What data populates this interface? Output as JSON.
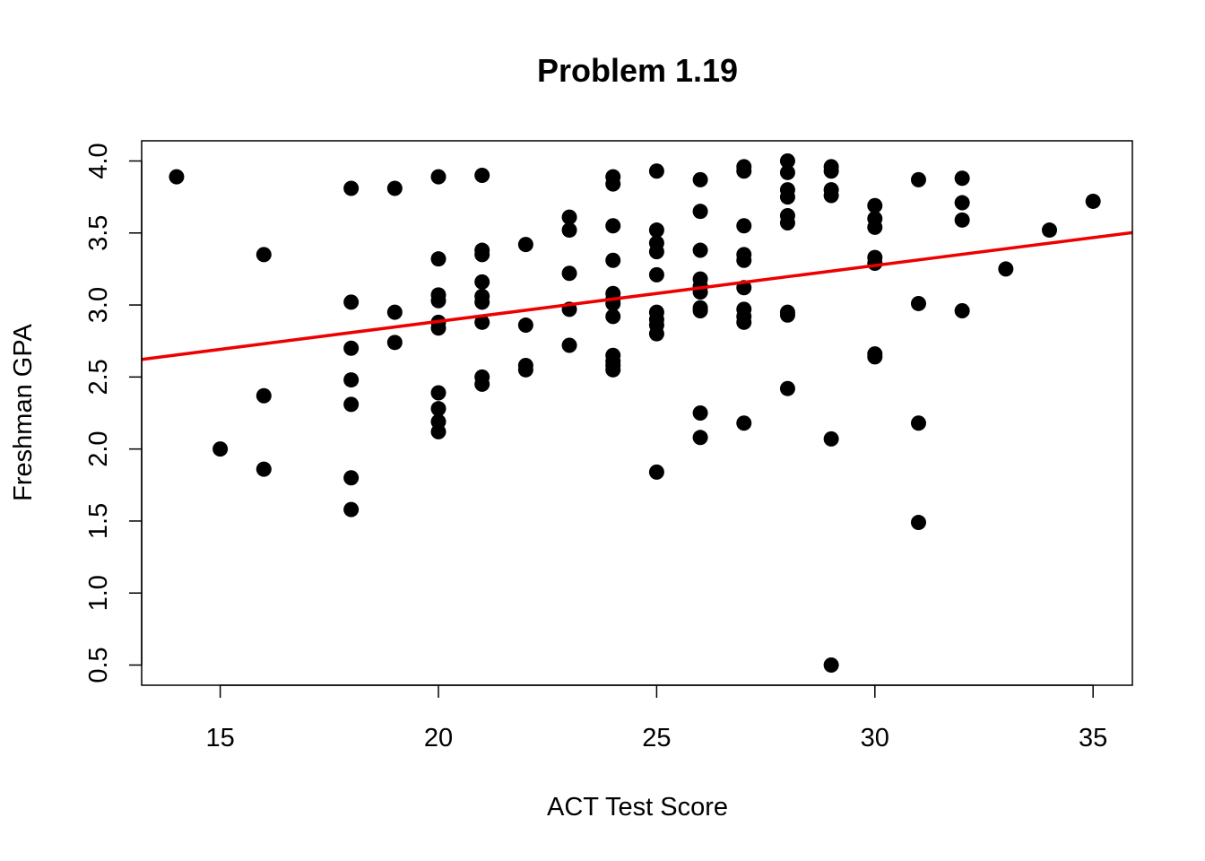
{
  "chart_data": {
    "type": "scatter",
    "title": "Problem 1.19",
    "xlabel": "ACT Test Score",
    "ylabel": "Freshman GPA",
    "xlim": [
      13.2,
      35.9
    ],
    "ylim": [
      0.36,
      4.14
    ],
    "xticks": [
      "15",
      "20",
      "25",
      "30",
      "35"
    ],
    "yticks": [
      "0.5",
      "1.0",
      "1.5",
      "2.0",
      "2.5",
      "3.0",
      "3.5",
      "4.0"
    ],
    "grid": false,
    "legend": "none",
    "point_color": "#000000",
    "line_color": "#ee0000",
    "fit_line": {
      "intercept": 2.11,
      "slope": 0.0388
    },
    "points": [
      {
        "x": 14,
        "y": 3.89
      },
      {
        "x": 15,
        "y": 2.0
      },
      {
        "x": 16,
        "y": 3.35
      },
      {
        "x": 16,
        "y": 2.37
      },
      {
        "x": 16,
        "y": 1.86
      },
      {
        "x": 18,
        "y": 3.81
      },
      {
        "x": 18,
        "y": 3.02
      },
      {
        "x": 18,
        "y": 2.7
      },
      {
        "x": 18,
        "y": 2.48
      },
      {
        "x": 18,
        "y": 2.31
      },
      {
        "x": 18,
        "y": 1.8
      },
      {
        "x": 18,
        "y": 1.58
      },
      {
        "x": 19,
        "y": 3.81
      },
      {
        "x": 19,
        "y": 2.95
      },
      {
        "x": 19,
        "y": 2.74
      },
      {
        "x": 20,
        "y": 3.89
      },
      {
        "x": 20,
        "y": 3.32
      },
      {
        "x": 20,
        "y": 3.07
      },
      {
        "x": 20,
        "y": 3.03
      },
      {
        "x": 20,
        "y": 2.88
      },
      {
        "x": 20,
        "y": 2.84
      },
      {
        "x": 20,
        "y": 2.39
      },
      {
        "x": 20,
        "y": 2.28
      },
      {
        "x": 20,
        "y": 2.19
      },
      {
        "x": 20,
        "y": 2.12
      },
      {
        "x": 21,
        "y": 3.9
      },
      {
        "x": 21,
        "y": 3.38
      },
      {
        "x": 21,
        "y": 3.35
      },
      {
        "x": 21,
        "y": 3.16
      },
      {
        "x": 21,
        "y": 3.06
      },
      {
        "x": 21,
        "y": 3.02
      },
      {
        "x": 21,
        "y": 2.88
      },
      {
        "x": 21,
        "y": 2.5
      },
      {
        "x": 21,
        "y": 2.45
      },
      {
        "x": 22,
        "y": 3.42
      },
      {
        "x": 22,
        "y": 2.86
      },
      {
        "x": 22,
        "y": 2.58
      },
      {
        "x": 22,
        "y": 2.55
      },
      {
        "x": 23,
        "y": 3.61
      },
      {
        "x": 23,
        "y": 3.52
      },
      {
        "x": 23,
        "y": 3.22
      },
      {
        "x": 23,
        "y": 2.97
      },
      {
        "x": 23,
        "y": 2.72
      },
      {
        "x": 24,
        "y": 3.89
      },
      {
        "x": 24,
        "y": 3.84
      },
      {
        "x": 24,
        "y": 3.55
      },
      {
        "x": 24,
        "y": 3.31
      },
      {
        "x": 24,
        "y": 3.08
      },
      {
        "x": 24,
        "y": 3.04
      },
      {
        "x": 24,
        "y": 3.01
      },
      {
        "x": 24,
        "y": 2.92
      },
      {
        "x": 24,
        "y": 2.65
      },
      {
        "x": 24,
        "y": 2.61
      },
      {
        "x": 24,
        "y": 2.58
      },
      {
        "x": 24,
        "y": 2.55
      },
      {
        "x": 25,
        "y": 3.93
      },
      {
        "x": 25,
        "y": 3.52
      },
      {
        "x": 25,
        "y": 3.43
      },
      {
        "x": 25,
        "y": 3.37
      },
      {
        "x": 25,
        "y": 3.21
      },
      {
        "x": 25,
        "y": 2.95
      },
      {
        "x": 25,
        "y": 2.9
      },
      {
        "x": 25,
        "y": 2.86
      },
      {
        "x": 25,
        "y": 2.8
      },
      {
        "x": 25,
        "y": 1.84
      },
      {
        "x": 26,
        "y": 3.87
      },
      {
        "x": 26,
        "y": 3.65
      },
      {
        "x": 26,
        "y": 3.38
      },
      {
        "x": 26,
        "y": 3.18
      },
      {
        "x": 26,
        "y": 3.13
      },
      {
        "x": 26,
        "y": 3.09
      },
      {
        "x": 26,
        "y": 2.98
      },
      {
        "x": 26,
        "y": 2.96
      },
      {
        "x": 26,
        "y": 2.25
      },
      {
        "x": 26,
        "y": 2.08
      },
      {
        "x": 27,
        "y": 3.96
      },
      {
        "x": 27,
        "y": 3.93
      },
      {
        "x": 27,
        "y": 3.55
      },
      {
        "x": 27,
        "y": 3.35
      },
      {
        "x": 27,
        "y": 3.31
      },
      {
        "x": 27,
        "y": 3.12
      },
      {
        "x": 27,
        "y": 2.97
      },
      {
        "x": 27,
        "y": 2.92
      },
      {
        "x": 27,
        "y": 2.88
      },
      {
        "x": 27,
        "y": 2.18
      },
      {
        "x": 28,
        "y": 4.0
      },
      {
        "x": 28,
        "y": 3.92
      },
      {
        "x": 28,
        "y": 3.8
      },
      {
        "x": 28,
        "y": 3.75
      },
      {
        "x": 28,
        "y": 3.62
      },
      {
        "x": 28,
        "y": 3.57
      },
      {
        "x": 28,
        "y": 2.95
      },
      {
        "x": 28,
        "y": 2.93
      },
      {
        "x": 28,
        "y": 2.42
      },
      {
        "x": 29,
        "y": 3.96
      },
      {
        "x": 29,
        "y": 3.93
      },
      {
        "x": 29,
        "y": 3.8
      },
      {
        "x": 29,
        "y": 3.76
      },
      {
        "x": 29,
        "y": 2.07
      },
      {
        "x": 29,
        "y": 0.5
      },
      {
        "x": 30,
        "y": 3.69
      },
      {
        "x": 30,
        "y": 3.6
      },
      {
        "x": 30,
        "y": 3.54
      },
      {
        "x": 30,
        "y": 3.33
      },
      {
        "x": 30,
        "y": 3.29
      },
      {
        "x": 30,
        "y": 2.66
      },
      {
        "x": 30,
        "y": 2.64
      },
      {
        "x": 31,
        "y": 3.87
      },
      {
        "x": 31,
        "y": 3.01
      },
      {
        "x": 31,
        "y": 2.18
      },
      {
        "x": 31,
        "y": 1.49
      },
      {
        "x": 32,
        "y": 3.88
      },
      {
        "x": 32,
        "y": 3.71
      },
      {
        "x": 32,
        "y": 3.59
      },
      {
        "x": 32,
        "y": 2.96
      },
      {
        "x": 33,
        "y": 3.25
      },
      {
        "x": 34,
        "y": 3.52
      },
      {
        "x": 35,
        "y": 3.72
      }
    ]
  }
}
